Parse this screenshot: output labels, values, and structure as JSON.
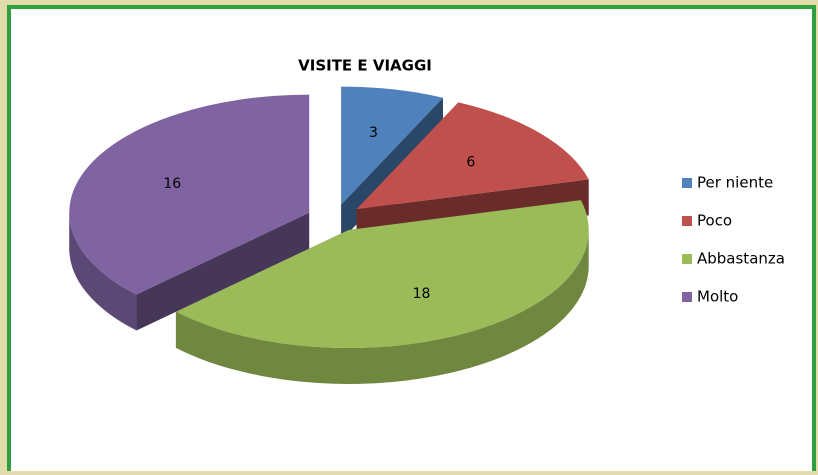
{
  "chart_data": {
    "type": "pie",
    "title": "VISITE E VIAGGI",
    "categories": [
      "Per niente",
      "Poco",
      "Abbastanza",
      "Molto"
    ],
    "values": [
      3,
      6,
      18,
      16
    ],
    "colors": [
      "#4f81bd",
      "#c0504d",
      "#9bbb59",
      "#8064a2"
    ],
    "legend": "right"
  }
}
